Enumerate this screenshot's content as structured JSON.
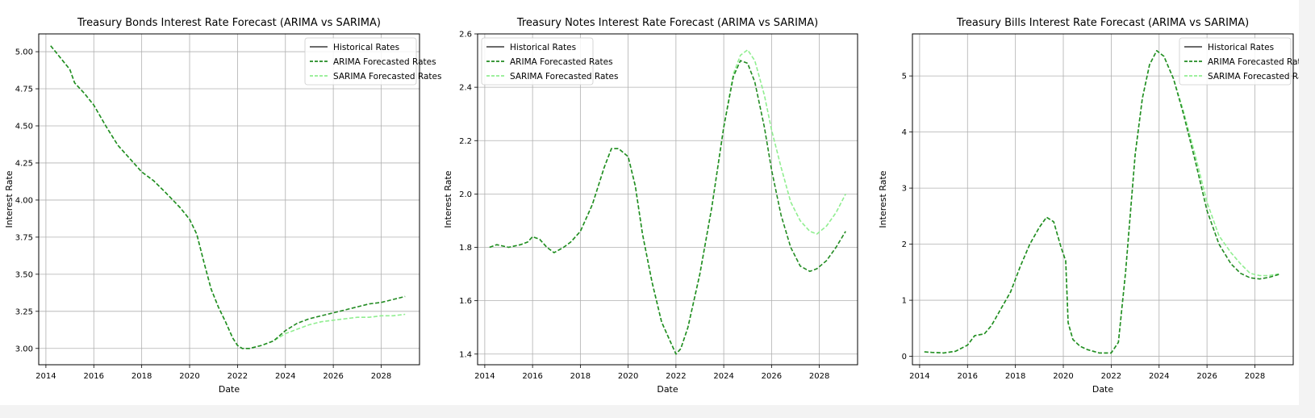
{
  "chart_data": [
    {
      "type": "line",
      "title": "Treasury Bonds Interest Rate Forecast (ARIMA vs SARIMA)",
      "xlabel": "Date",
      "ylabel": "Interest Rate",
      "xlim": [
        2013.7,
        2029.6
      ],
      "ylim": [
        2.89,
        5.12
      ],
      "xticks": [
        2014,
        2016,
        2018,
        2020,
        2022,
        2024,
        2026,
        2028
      ],
      "xtick_labels": [
        "2014",
        "2016",
        "2018",
        "2020",
        "2022",
        "2024",
        "2026",
        "2028"
      ],
      "yticks": [
        3.0,
        3.25,
        3.5,
        3.75,
        4.0,
        4.25,
        4.5,
        4.75,
        5.0
      ],
      "ytick_labels": [
        "3.00",
        "3.25",
        "3.50",
        "3.75",
        "4.00",
        "4.25",
        "4.50",
        "4.75",
        "5.00"
      ],
      "grid": true,
      "legend_position": "top-right",
      "legend": [
        "Historical Rates",
        "ARIMA Forecasted Rates",
        "SARIMA Forecasted Rates"
      ],
      "series": [
        {
          "name": "SARIMA Forecasted Rates",
          "color": "#90ee90",
          "style": "dashed",
          "x": [
            2014.2,
            2014.6,
            2015.0,
            2015.2,
            2015.6,
            2016.0,
            2016.5,
            2017.0,
            2017.5,
            2018.0,
            2018.5,
            2019.0,
            2019.3,
            2019.6,
            2020.0,
            2020.3,
            2020.6,
            2020.9,
            2021.2,
            2021.5,
            2021.8,
            2022.0,
            2022.2,
            2022.5,
            2023.0,
            2023.5,
            2024.0,
            2024.5,
            2025.0,
            2025.5,
            2026.0,
            2026.5,
            2027.0,
            2027.5,
            2028.0,
            2028.5,
            2029.0
          ],
          "y": [
            5.04,
            4.96,
            4.88,
            4.79,
            4.72,
            4.64,
            4.5,
            4.37,
            4.28,
            4.19,
            4.13,
            4.05,
            4.0,
            3.95,
            3.87,
            3.77,
            3.58,
            3.4,
            3.28,
            3.18,
            3.07,
            3.02,
            3.0,
            3.0,
            3.02,
            3.05,
            3.1,
            3.13,
            3.16,
            3.18,
            3.19,
            3.2,
            3.21,
            3.21,
            3.22,
            3.22,
            3.23
          ]
        },
        {
          "name": "ARIMA Forecasted Rates",
          "color": "#228b22",
          "style": "dashed",
          "x": [
            2014.2,
            2014.6,
            2015.0,
            2015.2,
            2015.6,
            2016.0,
            2016.5,
            2017.0,
            2017.5,
            2018.0,
            2018.5,
            2019.0,
            2019.3,
            2019.6,
            2020.0,
            2020.3,
            2020.6,
            2020.9,
            2021.2,
            2021.5,
            2021.8,
            2022.0,
            2022.2,
            2022.5,
            2023.0,
            2023.5,
            2024.0,
            2024.5,
            2025.0,
            2025.5,
            2026.0,
            2026.5,
            2027.0,
            2027.5,
            2028.0,
            2028.5,
            2029.0
          ],
          "y": [
            5.04,
            4.96,
            4.88,
            4.79,
            4.72,
            4.64,
            4.5,
            4.37,
            4.28,
            4.19,
            4.13,
            4.05,
            4.0,
            3.95,
            3.87,
            3.77,
            3.58,
            3.4,
            3.28,
            3.18,
            3.07,
            3.02,
            3.0,
            3.0,
            3.02,
            3.05,
            3.12,
            3.17,
            3.2,
            3.22,
            3.24,
            3.26,
            3.28,
            3.3,
            3.31,
            3.33,
            3.35
          ]
        }
      ]
    },
    {
      "type": "line",
      "title": "Treasury Notes Interest Rate Forecast (ARIMA vs SARIMA)",
      "xlabel": "Date",
      "ylabel": "Interest Rate",
      "xlim": [
        2013.7,
        2029.6
      ],
      "ylim": [
        1.36,
        2.6
      ],
      "xticks": [
        2014,
        2016,
        2018,
        2020,
        2022,
        2024,
        2026,
        2028
      ],
      "xtick_labels": [
        "2014",
        "2016",
        "2018",
        "2020",
        "2022",
        "2024",
        "2026",
        "2028"
      ],
      "yticks": [
        1.4,
        1.6,
        1.8,
        2.0,
        2.2,
        2.4,
        2.6
      ],
      "ytick_labels": [
        "1.4",
        "1.6",
        "1.8",
        "2.0",
        "2.2",
        "2.4",
        "2.6"
      ],
      "grid": true,
      "legend_position": "top-left",
      "legend": [
        "Historical Rates",
        "ARIMA Forecasted Rates",
        "SARIMA Forecasted Rates"
      ],
      "series": [
        {
          "name": "SARIMA Forecasted Rates",
          "color": "#90ee90",
          "style": "dashed",
          "x": [
            2014.2,
            2014.5,
            2015.0,
            2015.5,
            2015.8,
            2016.0,
            2016.3,
            2016.6,
            2016.9,
            2017.3,
            2017.6,
            2018.0,
            2018.5,
            2019.0,
            2019.3,
            2019.6,
            2020.0,
            2020.3,
            2020.6,
            2021.0,
            2021.4,
            2021.8,
            2022.0,
            2022.2,
            2022.5,
            2023.0,
            2023.5,
            2024.0,
            2024.4,
            2024.7,
            2025.0,
            2025.3,
            2025.7,
            2026.0,
            2026.4,
            2026.8,
            2027.2,
            2027.6,
            2027.9,
            2028.3,
            2028.7,
            2029.1
          ],
          "y": [
            1.8,
            1.81,
            1.8,
            1.81,
            1.82,
            1.84,
            1.83,
            1.8,
            1.78,
            1.8,
            1.82,
            1.86,
            1.96,
            2.1,
            2.17,
            2.17,
            2.14,
            2.03,
            1.85,
            1.67,
            1.52,
            1.44,
            1.4,
            1.42,
            1.5,
            1.7,
            1.95,
            2.25,
            2.45,
            2.52,
            2.54,
            2.5,
            2.37,
            2.24,
            2.1,
            1.97,
            1.9,
            1.86,
            1.85,
            1.88,
            1.93,
            2.0
          ]
        },
        {
          "name": "ARIMA Forecasted Rates",
          "color": "#228b22",
          "style": "dashed",
          "x": [
            2014.2,
            2014.5,
            2015.0,
            2015.5,
            2015.8,
            2016.0,
            2016.3,
            2016.6,
            2016.9,
            2017.3,
            2017.6,
            2018.0,
            2018.5,
            2019.0,
            2019.3,
            2019.6,
            2020.0,
            2020.3,
            2020.6,
            2021.0,
            2021.4,
            2021.8,
            2022.0,
            2022.2,
            2022.5,
            2023.0,
            2023.5,
            2024.0,
            2024.4,
            2024.7,
            2025.0,
            2025.3,
            2025.7,
            2026.0,
            2026.4,
            2026.8,
            2027.2,
            2027.6,
            2027.9,
            2028.3,
            2028.7,
            2029.1
          ],
          "y": [
            1.8,
            1.81,
            1.8,
            1.81,
            1.82,
            1.84,
            1.83,
            1.8,
            1.78,
            1.8,
            1.82,
            1.86,
            1.96,
            2.1,
            2.17,
            2.17,
            2.14,
            2.03,
            1.85,
            1.67,
            1.52,
            1.44,
            1.4,
            1.42,
            1.5,
            1.7,
            1.95,
            2.25,
            2.44,
            2.5,
            2.49,
            2.42,
            2.25,
            2.09,
            1.92,
            1.8,
            1.73,
            1.71,
            1.72,
            1.75,
            1.8,
            1.86
          ]
        }
      ]
    },
    {
      "type": "line",
      "title": "Treasury Bills Interest Rate Forecast (ARIMA vs SARIMA)",
      "xlabel": "Date",
      "ylabel": "Interest Rate",
      "xlim": [
        2013.7,
        2029.6
      ],
      "ylim": [
        -0.15,
        5.75
      ],
      "xticks": [
        2014,
        2016,
        2018,
        2020,
        2022,
        2024,
        2026,
        2028
      ],
      "xtick_labels": [
        "2014",
        "2016",
        "2018",
        "2020",
        "2022",
        "2024",
        "2026",
        "2028"
      ],
      "yticks": [
        0,
        1,
        2,
        3,
        4,
        5
      ],
      "ytick_labels": [
        "0",
        "1",
        "2",
        "3",
        "4",
        "5"
      ],
      "grid": true,
      "legend_position": "top-right",
      "legend": [
        "Historical Rates",
        "ARIMA Forecasted Rates",
        "SARIMA Forecasted Rates"
      ],
      "series": [
        {
          "name": "SARIMA Forecasted Rates",
          "color": "#90ee90",
          "style": "dashed",
          "x": [
            2014.2,
            2014.5,
            2015.0,
            2015.5,
            2016.0,
            2016.3,
            2016.7,
            2017.0,
            2017.4,
            2017.8,
            2018.2,
            2018.6,
            2019.0,
            2019.3,
            2019.6,
            2019.9,
            2020.1,
            2020.2,
            2020.4,
            2020.7,
            2021.0,
            2021.5,
            2022.0,
            2022.3,
            2022.6,
            2023.0,
            2023.3,
            2023.6,
            2023.9,
            2024.2,
            2024.6,
            2025.0,
            2025.5,
            2026.0,
            2026.5,
            2027.0,
            2027.4,
            2027.8,
            2028.2,
            2028.6,
            2029.0
          ],
          "y": [
            0.08,
            0.07,
            0.06,
            0.09,
            0.2,
            0.37,
            0.4,
            0.55,
            0.85,
            1.15,
            1.6,
            2.0,
            2.3,
            2.48,
            2.4,
            1.95,
            1.7,
            0.6,
            0.3,
            0.18,
            0.12,
            0.06,
            0.06,
            0.25,
            1.5,
            3.6,
            4.6,
            5.2,
            5.45,
            5.35,
            4.95,
            4.4,
            3.6,
            2.75,
            2.15,
            1.85,
            1.65,
            1.48,
            1.44,
            1.44,
            1.47
          ]
        },
        {
          "name": "ARIMA Forecasted Rates",
          "color": "#228b22",
          "style": "dashed",
          "x": [
            2014.2,
            2014.5,
            2015.0,
            2015.5,
            2016.0,
            2016.3,
            2016.7,
            2017.0,
            2017.4,
            2017.8,
            2018.2,
            2018.6,
            2019.0,
            2019.3,
            2019.6,
            2019.9,
            2020.1,
            2020.2,
            2020.4,
            2020.7,
            2021.0,
            2021.5,
            2022.0,
            2022.3,
            2022.6,
            2023.0,
            2023.3,
            2023.6,
            2023.9,
            2024.2,
            2024.6,
            2025.0,
            2025.5,
            2026.0,
            2026.5,
            2027.0,
            2027.4,
            2027.8,
            2028.2,
            2028.6,
            2029.0
          ],
          "y": [
            0.08,
            0.07,
            0.06,
            0.09,
            0.2,
            0.37,
            0.4,
            0.55,
            0.85,
            1.15,
            1.6,
            2.0,
            2.3,
            2.48,
            2.4,
            1.95,
            1.7,
            0.6,
            0.3,
            0.18,
            0.12,
            0.06,
            0.06,
            0.25,
            1.5,
            3.6,
            4.6,
            5.2,
            5.45,
            5.35,
            4.95,
            4.35,
            3.5,
            2.6,
            2.0,
            1.65,
            1.48,
            1.4,
            1.38,
            1.41,
            1.46
          ]
        }
      ]
    }
  ],
  "colors": {
    "historical": "#555555",
    "arima": "#228b22",
    "sarima": "#90ee90",
    "grid": "#b0b0b0"
  }
}
